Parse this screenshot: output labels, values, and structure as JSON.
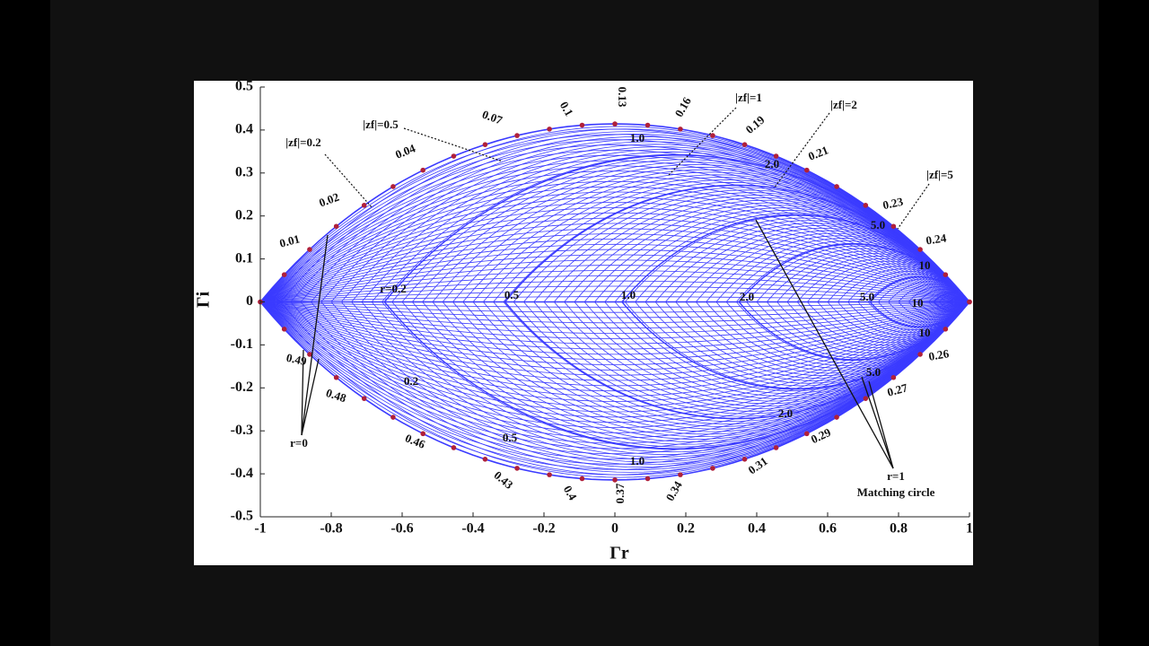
{
  "chart_data": {
    "type": "lens-grid",
    "xlabel": "Γr",
    "ylabel": "Γi",
    "xlim": [
      -1,
      1
    ],
    "ylim": [
      -0.5,
      0.5
    ],
    "xticks": [
      -1,
      -0.8,
      -0.6,
      -0.4,
      -0.2,
      0,
      0.2,
      0.4,
      0.6,
      0.8,
      1
    ],
    "yticks": [
      0.5,
      0.4,
      0.3,
      0.2,
      0.1,
      0,
      -0.1,
      -0.2,
      -0.3,
      -0.4,
      -0.5
    ],
    "grid_color": "#3b3bff",
    "point_color": "#b0203a",
    "annotations": {
      "wavelength": [
        "0.01",
        "0.02",
        "0.04",
        "0.07",
        "0.1",
        "0.13",
        "0.16",
        "0.19",
        "0.21",
        "0.23",
        "0.24",
        "0.49",
        "0.48",
        "0.46",
        "0.43",
        "0.4",
        "0.37",
        "0.34",
        "0.31",
        "0.29",
        "0.27",
        "0.26"
      ],
      "r_labels": [
        "r=0.2",
        "0.5",
        "1.0",
        "2.0",
        "5.0",
        "10"
      ],
      "x_labels_top": [
        "1.0",
        "2.0",
        "5.0",
        "10"
      ],
      "x_labels_bottom": [
        "0.2",
        "0.5",
        "1.0",
        "2.0",
        "5.0",
        "10"
      ],
      "zf_labels": [
        "|zf|=0.2",
        "|zf|=0.5",
        "|zf|=1",
        "|zf|=2",
        "|zf|=5"
      ],
      "r0": "r=0",
      "r1": "r=1",
      "matching": "Matching circle"
    }
  }
}
